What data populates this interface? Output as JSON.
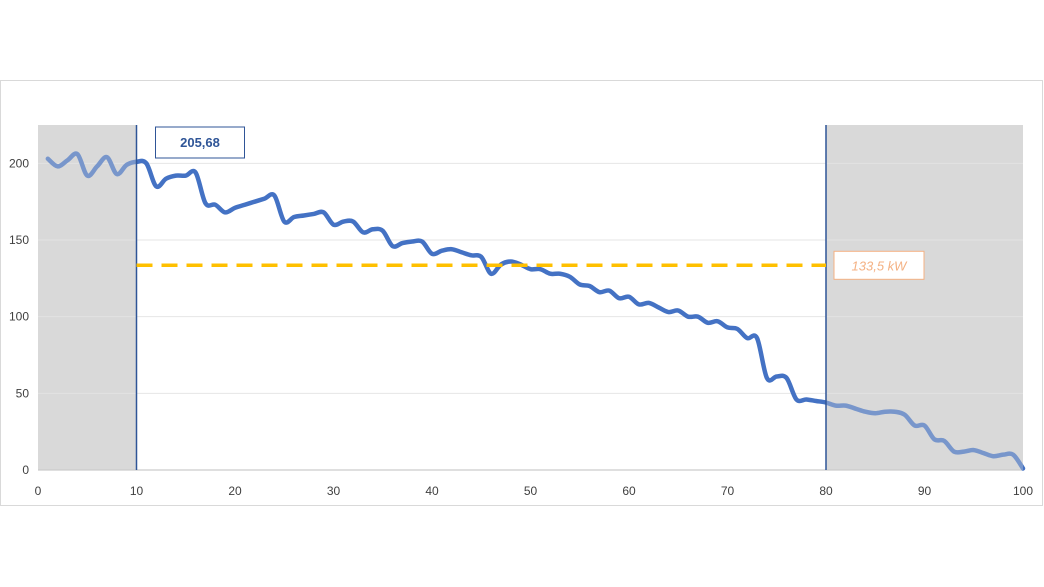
{
  "chart_data": {
    "type": "line",
    "xlim": [
      0,
      100
    ],
    "ylim": [
      0,
      225
    ],
    "x_ticks": [
      "0",
      "10",
      "20",
      "30",
      "40",
      "50",
      "60",
      "70",
      "80",
      "90",
      "100"
    ],
    "y_ticks": [
      "0",
      "50",
      "100",
      "150",
      "200"
    ],
    "grid": "horizontal",
    "shaded_ranges": [
      [
        0,
        10
      ],
      [
        80,
        100
      ]
    ],
    "vertical_markers": [
      10,
      80
    ],
    "average_line": {
      "value": 133.5,
      "from_x": 10,
      "to_x": 80,
      "label": "133,5 kW",
      "color": "#ffc000"
    },
    "peak_label": "205,68",
    "series_color": "#4472c4",
    "series": [
      {
        "x": [
          1,
          2,
          3,
          4,
          5,
          6,
          7,
          8,
          9,
          10,
          11,
          12,
          13,
          14,
          15,
          16,
          17,
          18,
          19,
          20,
          21,
          22,
          23,
          24,
          25,
          26,
          27,
          28,
          29,
          30,
          31,
          32,
          33,
          34,
          35,
          36,
          37,
          38,
          39,
          40,
          41,
          42,
          43,
          44,
          45,
          46,
          47,
          48,
          49,
          50,
          51,
          52,
          53,
          54,
          55,
          56,
          57,
          58,
          59,
          60,
          61,
          62,
          63,
          64,
          65,
          66,
          67,
          68,
          69,
          70,
          71,
          72,
          73,
          74,
          75,
          76,
          77,
          78,
          79,
          80,
          81,
          82,
          83,
          84,
          85,
          86,
          87,
          88,
          89,
          90,
          91,
          92,
          93,
          94,
          95,
          96,
          97,
          98,
          99,
          100
        ],
        "values": [
          203,
          198,
          202,
          206,
          192,
          198,
          204,
          193,
          199,
          201,
          200,
          185,
          190,
          192,
          192,
          194,
          174,
          173,
          168,
          171,
          173,
          175,
          177,
          179,
          162,
          165,
          166,
          167,
          168,
          160,
          162,
          162,
          155,
          157,
          156,
          146,
          148,
          149,
          149,
          141,
          143,
          144,
          142,
          140,
          139,
          128,
          134,
          136,
          134,
          131,
          131,
          128,
          128,
          126,
          121,
          120,
          116,
          117,
          112,
          113,
          108,
          109,
          106,
          103,
          104,
          100,
          100,
          96,
          97,
          93,
          92,
          86,
          86,
          60,
          61,
          60,
          46,
          46,
          45,
          44,
          42,
          42,
          40,
          38,
          37,
          38,
          38,
          36,
          29,
          29,
          20,
          19,
          12,
          12,
          13,
          11,
          9,
          10,
          10,
          1
        ]
      }
    ]
  }
}
